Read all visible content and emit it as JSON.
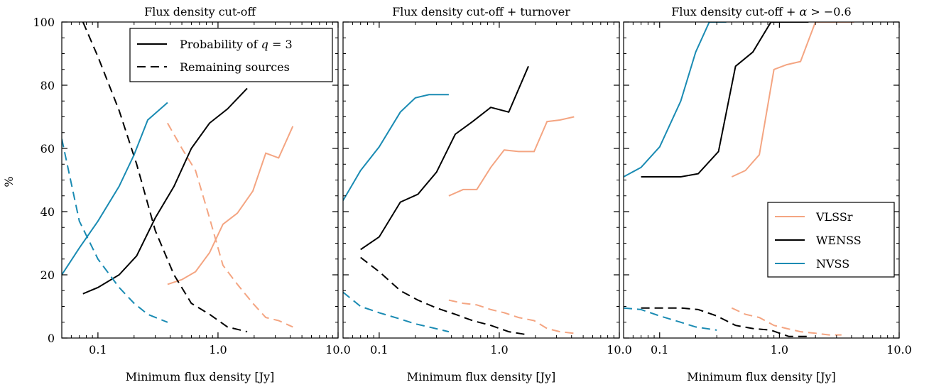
{
  "colors": {
    "VLSSr": "#f4a582",
    "WENSS": "#000000",
    "NVSS": "#1a8bb3"
  },
  "ylabel": "%",
  "legend_probability": {
    "solid": "Probability of q = 3",
    "dashed": "Remaining sources"
  },
  "legend_surveys": [
    "VLSSr",
    "WENSS",
    "NVSS"
  ],
  "chart_data": [
    {
      "type": "line",
      "title": "Flux density cut-off",
      "xlabel": "Minimum flux density [Jy]",
      "xscale": "log",
      "xlim": [
        0.05,
        10.0
      ],
      "ylim": [
        0,
        100
      ],
      "xticks": [
        "0.1",
        "1.0",
        "10.0"
      ],
      "yticks": [
        "0",
        "20",
        "40",
        "60",
        "80",
        "100"
      ],
      "legend": "top-right",
      "series": [
        {
          "name": "VLSSr",
          "kind": "probability",
          "x": [
            0.38,
            0.5,
            0.65,
            0.85,
            1.1,
            1.45,
            1.95,
            2.5,
            3.2,
            4.2
          ],
          "y": [
            17,
            18.5,
            21,
            27,
            36,
            39.5,
            46.5,
            58.5,
            57,
            67
          ]
        },
        {
          "name": "VLSSr",
          "kind": "remaining",
          "x": [
            0.38,
            0.5,
            0.65,
            0.85,
            1.1,
            1.45,
            1.95,
            2.5,
            3.2,
            4.2
          ],
          "y": [
            68,
            60,
            53,
            38,
            23,
            17,
            11,
            6.5,
            5.5,
            3.5
          ]
        },
        {
          "name": "WENSS",
          "kind": "probability",
          "x": [
            0.075,
            0.1,
            0.15,
            0.21,
            0.3,
            0.43,
            0.6,
            0.85,
            1.2,
            1.75
          ],
          "y": [
            14,
            16,
            20,
            26,
            38,
            48,
            60,
            68,
            72.5,
            79
          ]
        },
        {
          "name": "WENSS",
          "kind": "remaining",
          "x": [
            0.075,
            0.1,
            0.15,
            0.21,
            0.3,
            0.43,
            0.6,
            0.85,
            1.2,
            1.75
          ],
          "y": [
            100,
            89,
            72,
            55,
            34,
            20,
            11,
            7.5,
            3.5,
            2
          ]
        },
        {
          "name": "NVSS",
          "kind": "probability",
          "x": [
            0.05,
            0.07,
            0.1,
            0.15,
            0.2,
            0.26,
            0.38
          ],
          "y": [
            20,
            28.5,
            37,
            48,
            58,
            69,
            74.5
          ]
        },
        {
          "name": "NVSS",
          "kind": "remaining",
          "x": [
            0.05,
            0.07,
            0.1,
            0.15,
            0.2,
            0.26,
            0.38
          ],
          "y": [
            63,
            37,
            25,
            16,
            11,
            7.5,
            5
          ]
        }
      ]
    },
    {
      "type": "line",
      "title": "Flux density cut-off + turnover",
      "xlabel": "Minimum flux density [Jy]",
      "xscale": "log",
      "xlim": [
        0.05,
        10.0
      ],
      "ylim": [
        0,
        100
      ],
      "xticks": [
        "0.1",
        "1.0",
        "10.0"
      ],
      "yticks": [
        "0",
        "20",
        "40",
        "60",
        "80",
        "100"
      ],
      "series": [
        {
          "name": "VLSSr",
          "kind": "probability",
          "x": [
            0.38,
            0.5,
            0.65,
            0.85,
            1.1,
            1.45,
            1.95,
            2.5,
            3.2,
            4.2
          ],
          "y": [
            45,
            47,
            47,
            54,
            59.5,
            59,
            59,
            68.5,
            69,
            70
          ]
        },
        {
          "name": "VLSSr",
          "kind": "remaining",
          "x": [
            0.38,
            0.5,
            0.65,
            0.85,
            1.1,
            1.45,
            1.95,
            2.5,
            3.2,
            4.2
          ],
          "y": [
            12,
            11,
            10.5,
            9,
            8,
            6.5,
            5.5,
            3,
            2,
            1.5
          ]
        },
        {
          "name": "WENSS",
          "kind": "probability",
          "x": [
            0.07,
            0.1,
            0.15,
            0.21,
            0.3,
            0.43,
            0.6,
            0.85,
            1.2,
            1.75
          ],
          "y": [
            28,
            32,
            43,
            45.5,
            52.5,
            64.5,
            68.5,
            73,
            71.5,
            86
          ]
        },
        {
          "name": "WENSS",
          "kind": "remaining",
          "x": [
            0.07,
            0.1,
            0.15,
            0.21,
            0.3,
            0.43,
            0.6,
            0.85,
            1.2,
            1.75
          ],
          "y": [
            25.5,
            21,
            15,
            12,
            9.5,
            7.5,
            5.5,
            4,
            2,
            1
          ]
        },
        {
          "name": "NVSS",
          "kind": "probability",
          "x": [
            0.05,
            0.07,
            0.1,
            0.15,
            0.2,
            0.26,
            0.38
          ],
          "y": [
            43.5,
            53,
            60.5,
            71.5,
            76,
            77,
            77
          ]
        },
        {
          "name": "NVSS",
          "kind": "remaining",
          "x": [
            0.05,
            0.07,
            0.1,
            0.15,
            0.2,
            0.26,
            0.38
          ],
          "y": [
            14.5,
            10,
            8,
            6,
            4.5,
            3.5,
            2
          ]
        }
      ]
    },
    {
      "type": "line",
      "title": "Flux density cut-off + α > −0.6",
      "xlabel": "Minimum flux density [Jy]",
      "xscale": "log",
      "xlim": [
        0.05,
        10.0
      ],
      "ylim": [
        0,
        100
      ],
      "xticks": [
        "0.1",
        "1.0",
        "10.0"
      ],
      "yticks": [
        "0",
        "20",
        "40",
        "60",
        "80",
        "100"
      ],
      "legend": "center-right",
      "series": [
        {
          "name": "VLSSr",
          "kind": "probability",
          "x": [
            0.4,
            0.52,
            0.68,
            0.9,
            1.15,
            1.5,
            2.0,
            2.6,
            3.3,
            4.2
          ],
          "y": [
            51,
            53,
            58,
            85,
            86.5,
            87.5,
            100,
            100,
            100,
            100
          ]
        },
        {
          "name": "VLSSr",
          "kind": "remaining",
          "x": [
            0.4,
            0.52,
            0.68,
            0.9,
            1.15,
            1.5,
            2.0,
            2.6,
            3.3
          ],
          "y": [
            9.5,
            7.5,
            6.5,
            4,
            3,
            2,
            1.5,
            1,
            1
          ]
        },
        {
          "name": "WENSS",
          "kind": "probability",
          "x": [
            0.07,
            0.1,
            0.15,
            0.21,
            0.31,
            0.43,
            0.6,
            0.85,
            1.2,
            1.75
          ],
          "y": [
            51,
            51,
            51,
            52,
            59,
            86,
            90.5,
            100,
            100,
            100
          ]
        },
        {
          "name": "WENSS",
          "kind": "remaining",
          "x": [
            0.07,
            0.1,
            0.15,
            0.21,
            0.3,
            0.43,
            0.6,
            0.85,
            1.2,
            1.75
          ],
          "y": [
            9.5,
            9.5,
            9.5,
            9,
            7,
            4,
            3,
            2.5,
            0.5,
            0.5
          ]
        },
        {
          "name": "NVSS",
          "kind": "probability",
          "x": [
            0.05,
            0.07,
            0.1,
            0.15,
            0.2,
            0.26,
            0.36
          ],
          "y": [
            51,
            54,
            60.5,
            75,
            90.5,
            100,
            100
          ]
        },
        {
          "name": "NVSS",
          "kind": "remaining",
          "x": [
            0.05,
            0.07,
            0.1,
            0.15,
            0.2,
            0.3
          ],
          "y": [
            9.5,
            9,
            7,
            5,
            3.5,
            2.5
          ]
        }
      ]
    }
  ]
}
